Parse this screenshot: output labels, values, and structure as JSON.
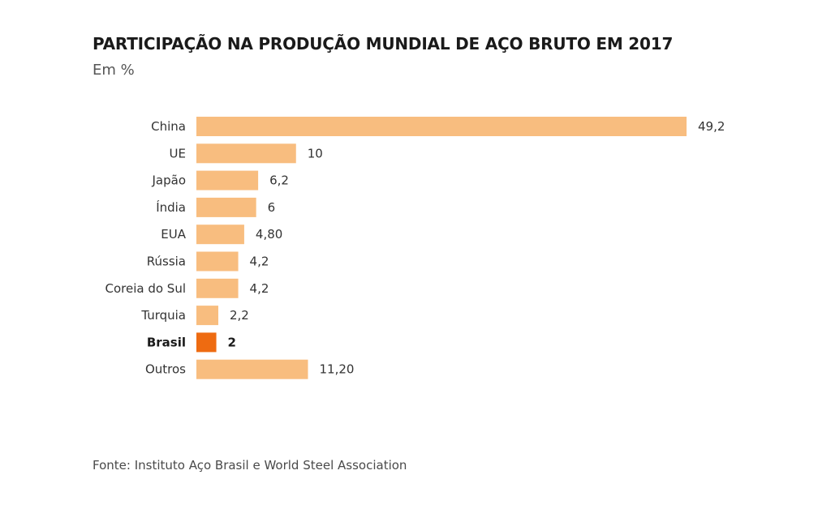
{
  "chart_data": {
    "type": "bar",
    "orientation": "horizontal",
    "title": "PARTICIPAÇÃO NA PRODUÇÃO MUNDIAL DE AÇO BRUTO EM 2017",
    "subtitle": "Em %",
    "categories": [
      "China",
      "UE",
      "Japão",
      "Índia",
      "EUA",
      "Rússia",
      "Coreia do Sul",
      "Turquia",
      "Brasil",
      "Outros"
    ],
    "values": [
      49.2,
      10,
      6.2,
      6,
      4.8,
      4.2,
      4.2,
      2.2,
      2,
      11.2
    ],
    "value_labels": [
      "49,2",
      "10",
      "6,2",
      "6",
      "4,80",
      "4,2",
      "4,2",
      "2,2",
      "2",
      "11,20"
    ],
    "highlight": "Brasil",
    "xlim": [
      0,
      49.2
    ],
    "grid": false,
    "legend": "none",
    "colors": {
      "bar": "#f8bd7f",
      "highlight": "#ee6b11",
      "label": "#333333",
      "highlight_label": "#1a1a1a"
    }
  },
  "source": "Fonte: Instituto Aço Brasil e World Steel Association"
}
